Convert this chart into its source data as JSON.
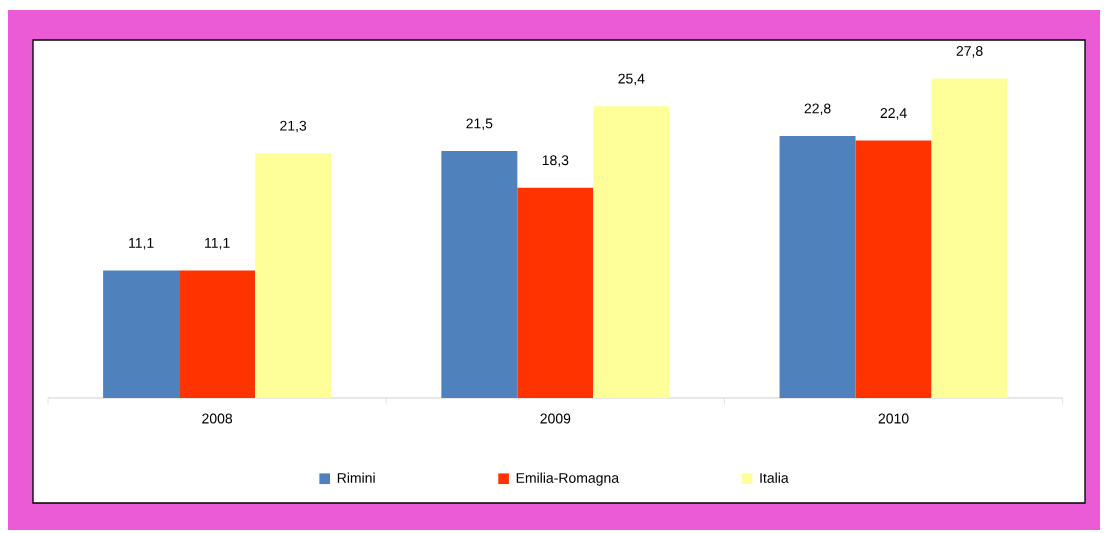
{
  "chart_data": {
    "type": "bar",
    "categories": [
      "2008",
      "2009",
      "2010"
    ],
    "series": [
      {
        "name": "Rimini",
        "color": "#4f81bd",
        "values": [
          11.1,
          21.5,
          22.8
        ],
        "value_labels": [
          "11,1",
          "21,5",
          "22,8"
        ]
      },
      {
        "name": "Emilia-Romagna",
        "color": "#ff3300",
        "values": [
          11.1,
          18.3,
          22.4
        ],
        "value_labels": [
          "11,1",
          "18,3",
          "22,4"
        ]
      },
      {
        "name": "Italia",
        "color": "#ffff99",
        "values": [
          21.3,
          25.4,
          27.8
        ],
        "value_labels": [
          "21,3",
          "25,4",
          "27,8"
        ]
      }
    ],
    "legend": "bottom"
  }
}
